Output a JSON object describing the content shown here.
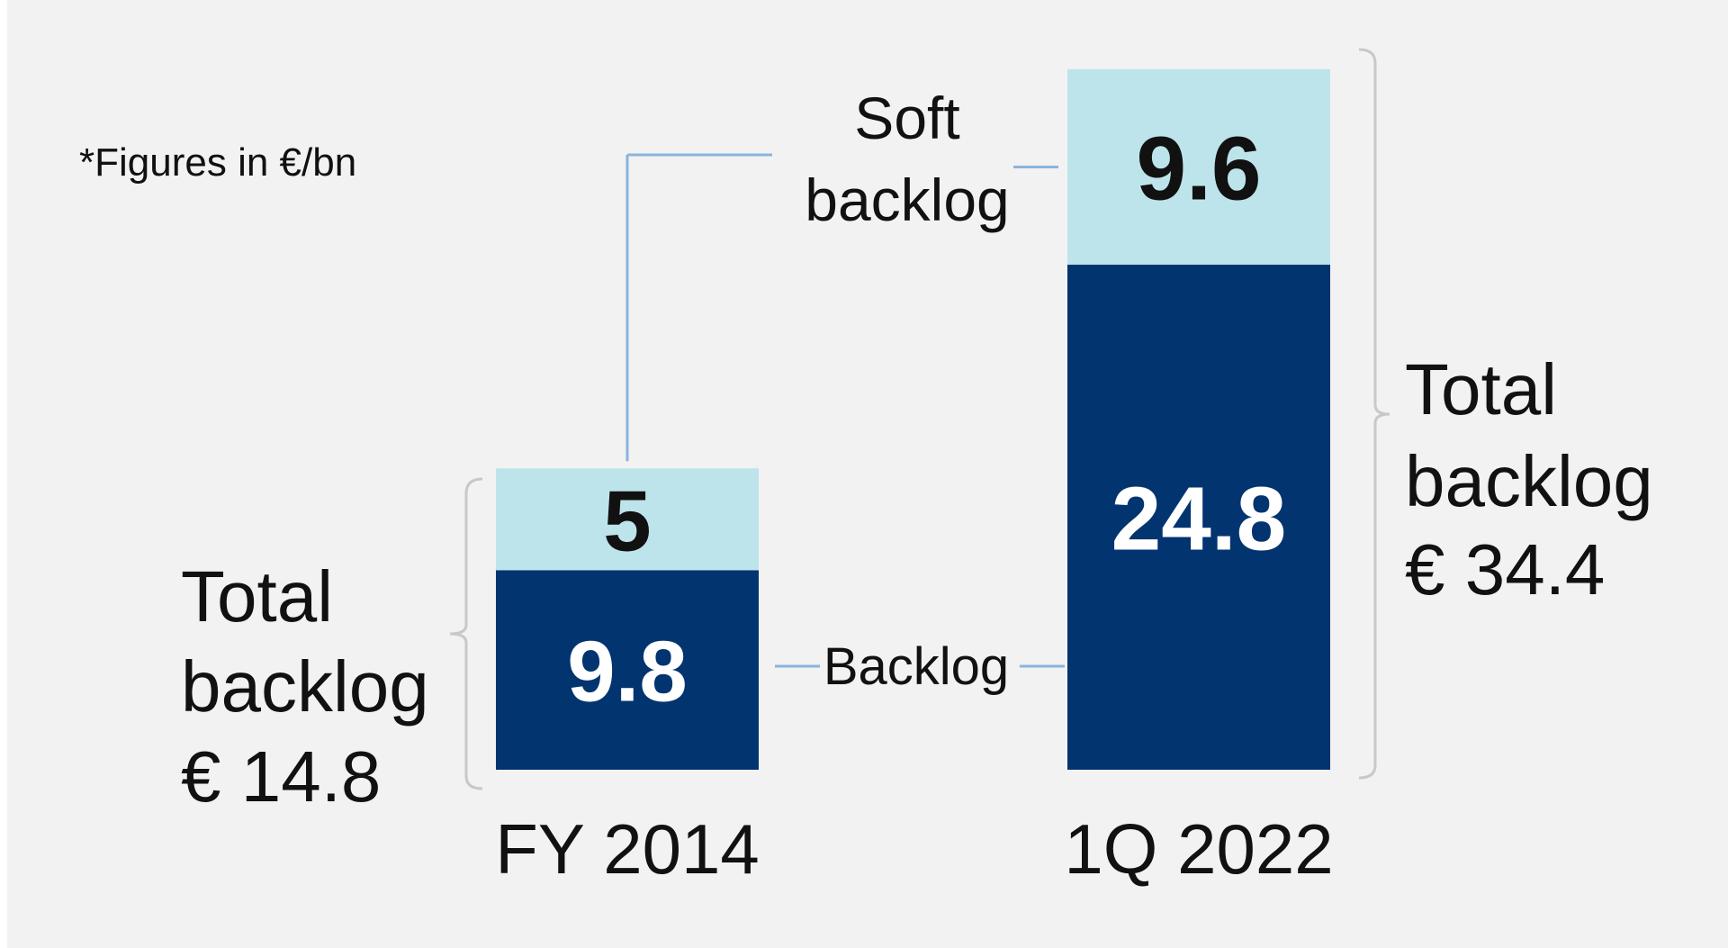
{
  "note": "*Figures in €/bn",
  "colors": {
    "backlog": "#02346f",
    "soft_backlog": "#bde4ea",
    "connector": "#8ab4dc",
    "brace": "#c8c8c8",
    "background": "#f2f2f2",
    "text": "#111111",
    "bar_value_light": "#ffffff"
  },
  "labels": {
    "soft_backlog_line1": "Soft",
    "soft_backlog_line2": "backlog",
    "backlog": "Backlog"
  },
  "totals": [
    {
      "line1": "Total",
      "line2": "backlog",
      "line3": "€ 14.8"
    },
    {
      "line1": "Total",
      "line2": "backlog",
      "line3": "€ 34.4"
    }
  ],
  "chart_data": {
    "type": "bar",
    "stacked": true,
    "categories": [
      "FY 2014",
      "1Q 2022"
    ],
    "series": [
      {
        "name": "Backlog",
        "values": [
          9.8,
          24.8
        ]
      },
      {
        "name": "Soft backlog",
        "values": [
          5,
          9.6
        ]
      }
    ],
    "data_labels": {
      "Backlog": [
        "9.8",
        "24.8"
      ],
      "Soft backlog": [
        "5",
        "9.6"
      ]
    },
    "totals": [
      14.8,
      34.4
    ],
    "unit": "€ bn",
    "grid": false,
    "legend": "none"
  }
}
